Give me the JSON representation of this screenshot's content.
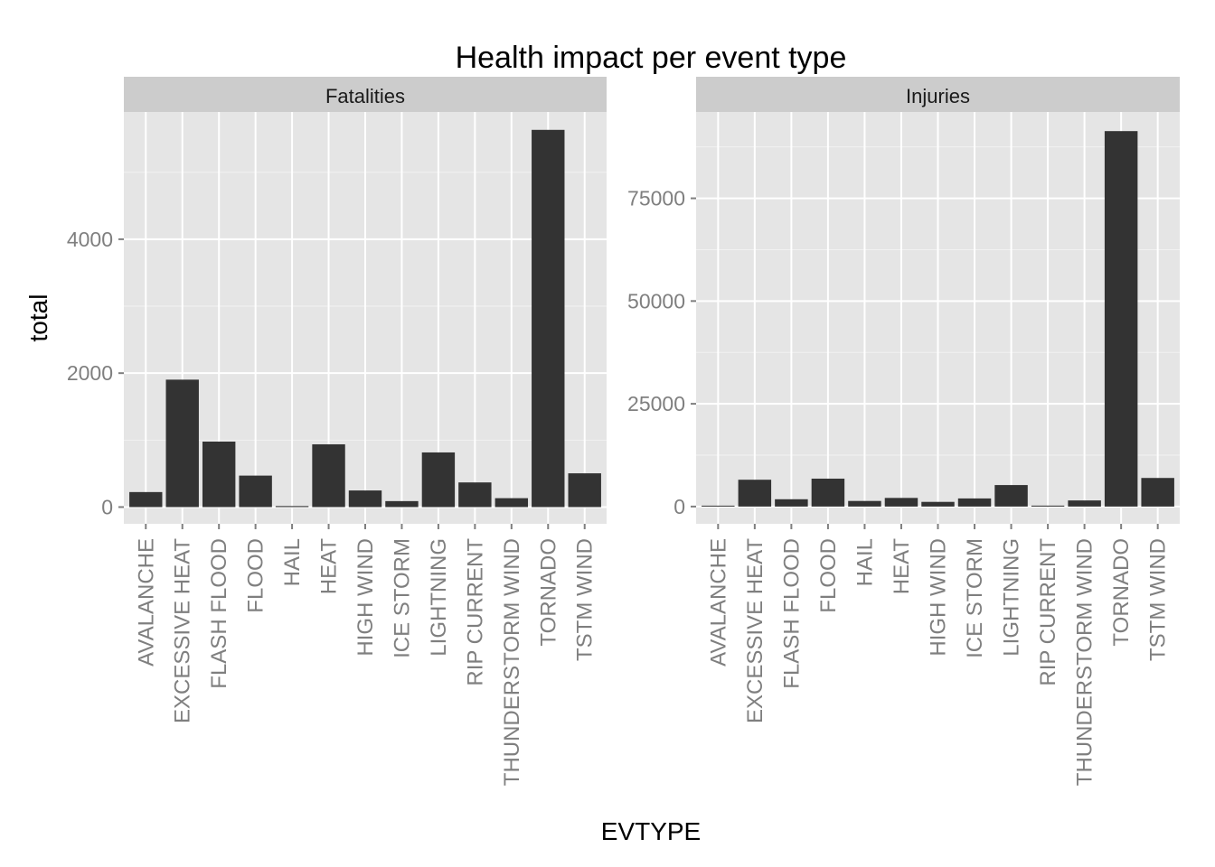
{
  "chart_data": {
    "type": "bar",
    "title": "Health impact per event type",
    "xlabel": "EVTYPE",
    "ylabel": "total",
    "categories": [
      "AVALANCHE",
      "EXCESSIVE HEAT",
      "FLASH FLOOD",
      "FLOOD",
      "HAIL",
      "HEAT",
      "HIGH WIND",
      "ICE STORM",
      "LIGHTNING",
      "RIP CURRENT",
      "THUNDERSTORM WIND",
      "TORNADO",
      "TSTM WIND"
    ],
    "facets": [
      {
        "name": "Fatalities",
        "values": [
          224,
          1903,
          978,
          470,
          15,
          937,
          248,
          89,
          816,
          368,
          133,
          5633,
          504
        ],
        "ylim": [
          -250,
          5900
        ],
        "yticks": [
          0,
          2000,
          4000
        ]
      },
      {
        "name": "Injuries",
        "values": [
          170,
          6525,
          1777,
          6789,
          1361,
          2100,
          1137,
          1975,
          5230,
          232,
          1488,
          91346,
          6957
        ],
        "ylim": [
          -4200,
          96000
        ],
        "yticks": [
          0,
          25000,
          50000,
          75000
        ]
      }
    ],
    "grid": true,
    "legend": "none",
    "colors": {
      "panel": "#e5e5e5",
      "strip": "#cccccc",
      "bar": "#333333",
      "grid": "#ffffff",
      "tick_text": "#7f7f7f"
    }
  }
}
